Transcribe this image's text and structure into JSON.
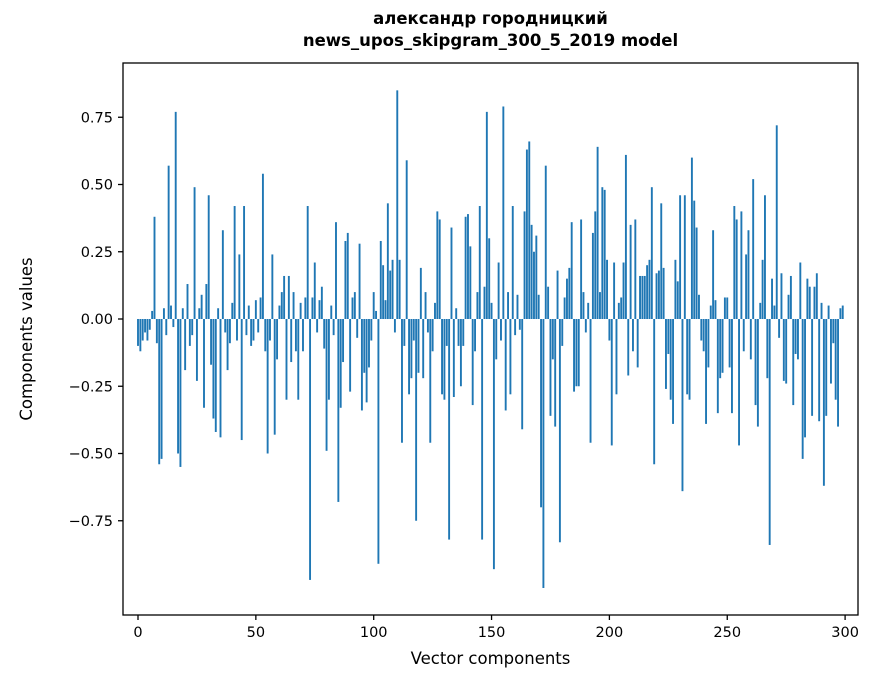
{
  "chart_data": {
    "type": "bar",
    "title_lines": [
      "александр городницкий",
      "news_upos_skipgram_300_5_2019 model"
    ],
    "xlabel": "Vector components",
    "ylabel": "Components values",
    "bar_color": "#1f77b4",
    "axis_color": "#000000",
    "n_components": 300,
    "x_ticks": [
      0,
      50,
      100,
      150,
      200,
      250,
      300
    ],
    "y_ticks": [
      {
        "v": 0.75,
        "label": "0.75"
      },
      {
        "v": 0.5,
        "label": "0.50"
      },
      {
        "v": 0.25,
        "label": "0.25"
      },
      {
        "v": 0.0,
        "label": "0.00"
      },
      {
        "v": -0.25,
        "label": "−0.25"
      },
      {
        "v": -0.5,
        "label": "−0.50"
      },
      {
        "v": -0.75,
        "label": "−0.75"
      }
    ],
    "ylim": [
      -1.09,
      0.95
    ],
    "xlim": [
      -6.5,
      305
    ],
    "grid": false,
    "legend": null,
    "values": [
      -0.1,
      -0.12,
      -0.08,
      -0.05,
      -0.08,
      -0.04,
      0.03,
      0.38,
      -0.09,
      -0.54,
      -0.52,
      0.04,
      -0.06,
      0.57,
      0.05,
      -0.03,
      0.77,
      -0.5,
      -0.55,
      0.04,
      -0.19,
      0.13,
      -0.1,
      -0.06,
      0.49,
      -0.23,
      0.04,
      0.09,
      -0.33,
      0.13,
      0.46,
      -0.17,
      -0.37,
      -0.42,
      0.04,
      -0.44,
      0.33,
      -0.05,
      -0.19,
      -0.09,
      0.06,
      0.42,
      -0.08,
      0.24,
      -0.45,
      0.42,
      -0.06,
      0.05,
      -0.1,
      -0.08,
      0.07,
      -0.05,
      0.08,
      0.54,
      -0.12,
      -0.5,
      -0.08,
      0.24,
      -0.43,
      -0.15,
      0.05,
      0.1,
      0.16,
      -0.3,
      0.16,
      -0.16,
      0.1,
      -0.12,
      -0.3,
      0.06,
      -0.12,
      0.08,
      0.42,
      -0.97,
      0.08,
      0.21,
      -0.05,
      0.07,
      0.12,
      -0.11,
      -0.49,
      -0.3,
      0.05,
      -0.06,
      0.36,
      -0.68,
      -0.33,
      -0.16,
      0.29,
      0.32,
      -0.27,
      0.08,
      0.1,
      -0.07,
      0.28,
      -0.34,
      -0.2,
      -0.31,
      -0.18,
      -0.08,
      0.1,
      0.03,
      -0.91,
      0.29,
      0.2,
      0.07,
      0.43,
      0.18,
      0.22,
      -0.05,
      0.85,
      0.22,
      -0.46,
      -0.1,
      0.59,
      -0.28,
      -0.22,
      -0.08,
      -0.75,
      -0.2,
      0.19,
      -0.22,
      0.1,
      -0.05,
      -0.46,
      -0.12,
      0.06,
      0.4,
      0.37,
      -0.28,
      -0.3,
      -0.1,
      -0.82,
      0.34,
      -0.29,
      0.04,
      -0.1,
      -0.25,
      -0.1,
      0.38,
      0.39,
      0.27,
      -0.32,
      -0.12,
      0.1,
      0.42,
      -0.82,
      0.12,
      0.77,
      0.3,
      0.06,
      -0.93,
      -0.15,
      0.21,
      -0.08,
      0.79,
      -0.34,
      0.1,
      -0.28,
      0.42,
      -0.06,
      0.09,
      -0.04,
      -0.41,
      0.4,
      0.63,
      0.66,
      0.35,
      0.25,
      0.31,
      0.09,
      -0.7,
      -1.0,
      0.57,
      0.12,
      -0.36,
      -0.15,
      -0.4,
      0.18,
      -0.83,
      -0.1,
      0.08,
      0.15,
      0.19,
      0.36,
      -0.27,
      -0.25,
      -0.25,
      0.37,
      0.1,
      -0.05,
      0.06,
      -0.46,
      0.32,
      0.4,
      0.64,
      0.1,
      0.49,
      0.48,
      0.22,
      -0.08,
      -0.47,
      0.21,
      -0.28,
      0.06,
      0.08,
      0.21,
      0.61,
      -0.21,
      0.35,
      -0.12,
      0.37,
      -0.18,
      0.16,
      0.16,
      0.16,
      0.2,
      0.22,
      0.49,
      -0.54,
      0.17,
      0.18,
      0.43,
      0.19,
      -0.26,
      -0.13,
      -0.3,
      -0.39,
      0.22,
      0.14,
      0.46,
      -0.64,
      0.46,
      -0.28,
      -0.3,
      0.6,
      0.44,
      0.34,
      0.09,
      -0.08,
      -0.12,
      -0.39,
      -0.18,
      0.05,
      0.33,
      0.07,
      -0.35,
      -0.22,
      -0.2,
      0.08,
      0.08,
      -0.18,
      -0.35,
      0.42,
      0.37,
      -0.47,
      0.4,
      -0.12,
      0.24,
      0.33,
      -0.15,
      0.52,
      -0.32,
      -0.4,
      0.06,
      0.22,
      0.46,
      -0.22,
      -0.84,
      0.15,
      0.05,
      0.72,
      -0.07,
      0.17,
      -0.23,
      -0.24,
      0.09,
      0.16,
      -0.32,
      -0.13,
      -0.15,
      0.21,
      -0.52,
      -0.44,
      0.15,
      0.12,
      -0.36,
      0.12,
      0.17,
      -0.38,
      0.06,
      -0.62,
      -0.36,
      0.05,
      -0.24,
      -0.09,
      -0.3,
      -0.4,
      0.04,
      0.05
    ]
  }
}
